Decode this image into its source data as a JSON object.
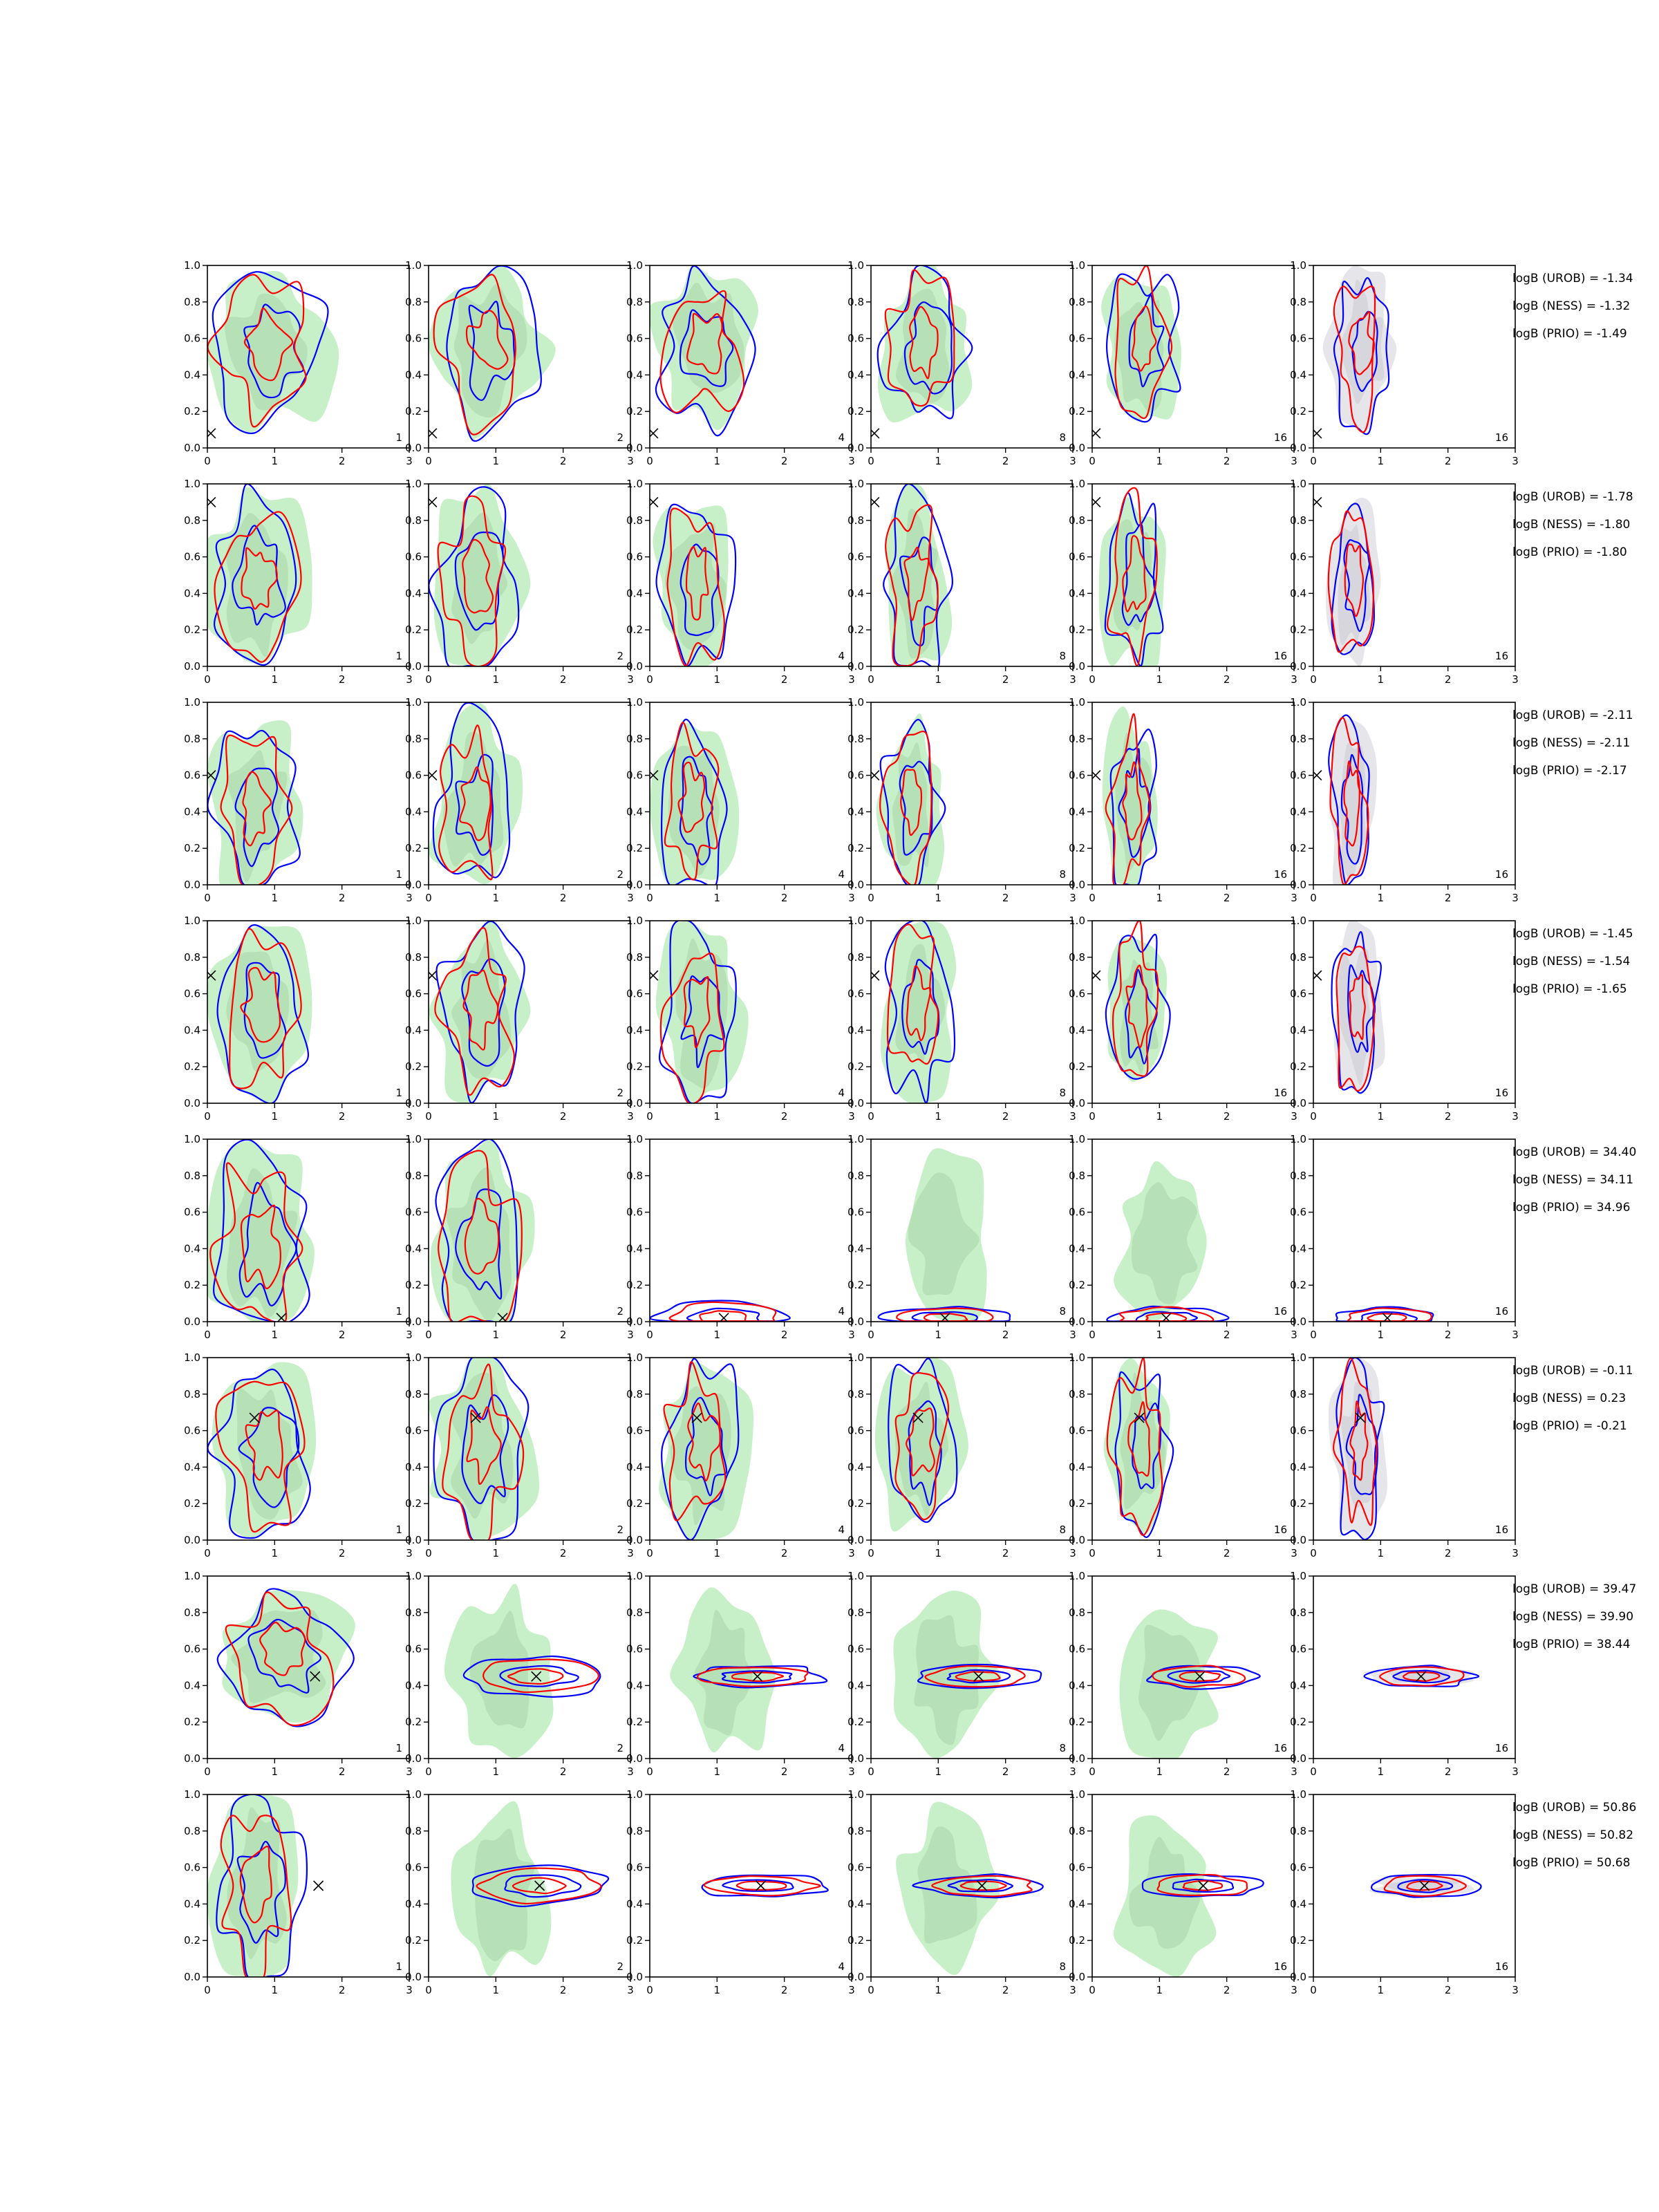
{
  "chart_data": {
    "type": "contour",
    "layout": "grid",
    "rows": 8,
    "columns": 6,
    "xlim": [
      0,
      3
    ],
    "ylim": [
      0,
      1.0
    ],
    "xticks": [
      "0",
      "1",
      "2",
      "3"
    ],
    "yticks": [
      "0.0",
      "0.2",
      "0.4",
      "0.6",
      "0.8",
      "1.0"
    ],
    "column_labels": [
      "1",
      "2",
      "4",
      "8",
      "16",
      "16"
    ],
    "colors": {
      "red_contour": "#ff0000",
      "blue_contour": "#0000ff",
      "green_fill_light": "#c8f0c8",
      "green_fill_dark": "#aed8ae",
      "gray_fill_light": "#e6e6ea",
      "gray_fill_dark": "#cfcfd6",
      "marker": "#000000"
    },
    "rows_data": [
      {
        "marker": [
          0.05,
          0.08
        ],
        "logB": [
          "logB (UROB) = -1.34",
          "logB (NESS) = -1.32",
          "logB (PRIO) = -1.49"
        ]
      },
      {
        "marker": [
          0.05,
          0.9
        ],
        "logB": [
          "logB (UROB) = -1.78",
          "logB (NESS) = -1.80",
          "logB (PRIO) = -1.80"
        ]
      },
      {
        "marker": [
          0.05,
          0.6
        ],
        "logB": [
          "logB (UROB) = -2.11",
          "logB (NESS) = -2.11",
          "logB (PRIO) = -2.17"
        ]
      },
      {
        "marker": [
          0.05,
          0.7
        ],
        "logB": [
          "logB (UROB) = -1.45",
          "logB (NESS) = -1.54",
          "logB (PRIO) = -1.65"
        ]
      },
      {
        "marker": [
          1.1,
          0.02
        ],
        "logB": [
          "logB (UROB) = 34.40",
          "logB (NESS) = 34.11",
          "logB (PRIO) = 34.96"
        ]
      },
      {
        "marker": [
          0.7,
          0.67
        ],
        "logB": [
          "logB (UROB) = -0.11",
          "logB (NESS) = 0.23",
          "logB (PRIO) = -0.21"
        ]
      },
      {
        "marker": [
          1.6,
          0.45
        ],
        "logB": [
          "logB (UROB) = 39.47",
          "logB (NESS) = 39.90",
          "logB (PRIO) = 38.44"
        ]
      },
      {
        "marker": [
          1.65,
          0.5
        ],
        "logB": [
          "logB (UROB) = 50.86",
          "logB (NESS) = 50.82",
          "logB (PRIO) = 50.68"
        ]
      }
    ]
  }
}
